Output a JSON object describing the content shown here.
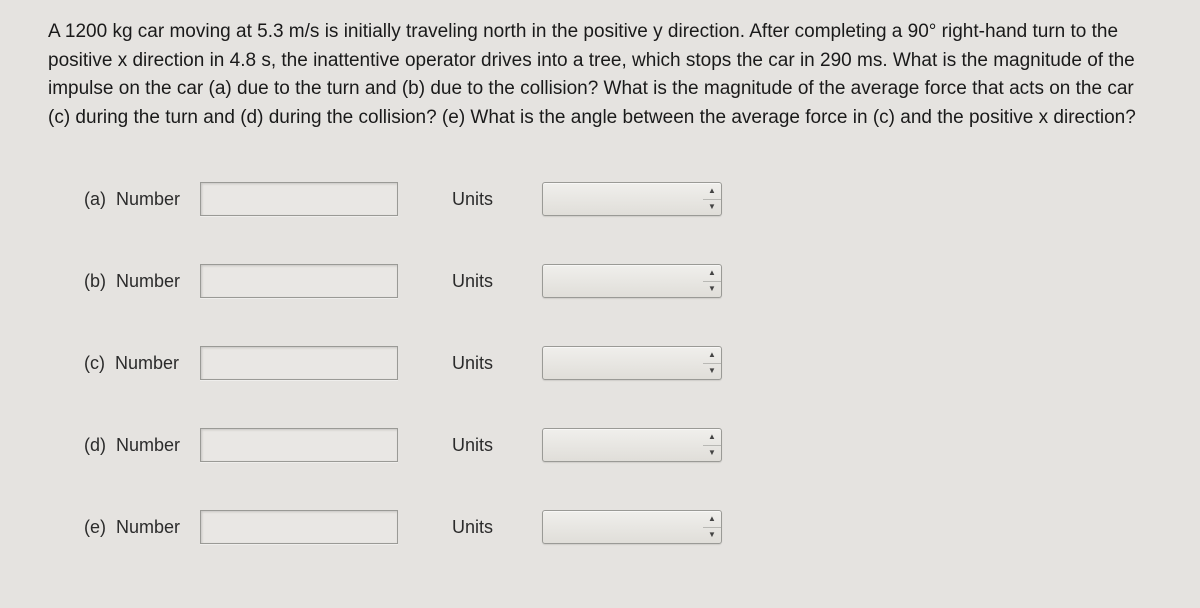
{
  "question_text": "A 1200 kg car moving at 5.3 m/s is initially traveling north in the positive y direction. After completing a 90° right-hand turn to the positive x direction in 4.8 s, the inattentive operator drives into a tree, which stops the car in 290 ms. What is the magnitude of the impulse on the car (a) due to the turn and (b) due to the collision? What is the magnitude of the average force that acts on the car (c) during the turn and (d) during the collision? (e) What is the angle between the average force in (c) and the positive x direction?",
  "labels": {
    "number": "Number",
    "units": "Units"
  },
  "rows": [
    {
      "id": "a",
      "tag": "(a)",
      "number_value": "",
      "units_value": ""
    },
    {
      "id": "b",
      "tag": "(b)",
      "number_value": "",
      "units_value": ""
    },
    {
      "id": "c",
      "tag": "(c)",
      "number_value": "",
      "units_value": ""
    },
    {
      "id": "d",
      "tag": "(d)",
      "number_value": "",
      "units_value": ""
    },
    {
      "id": "e",
      "tag": "(e)",
      "number_value": "",
      "units_value": ""
    }
  ],
  "styling": {
    "background_color": "#e5e3e0",
    "text_color": "#1a1a1a",
    "input_border": "#9a9a96",
    "input_bg": "#e9e7e4",
    "select_bg_top": "#f0efec",
    "select_bg_bottom": "#e0ded9",
    "question_fontsize": 19,
    "label_fontsize": 18,
    "row_gap": 48
  }
}
